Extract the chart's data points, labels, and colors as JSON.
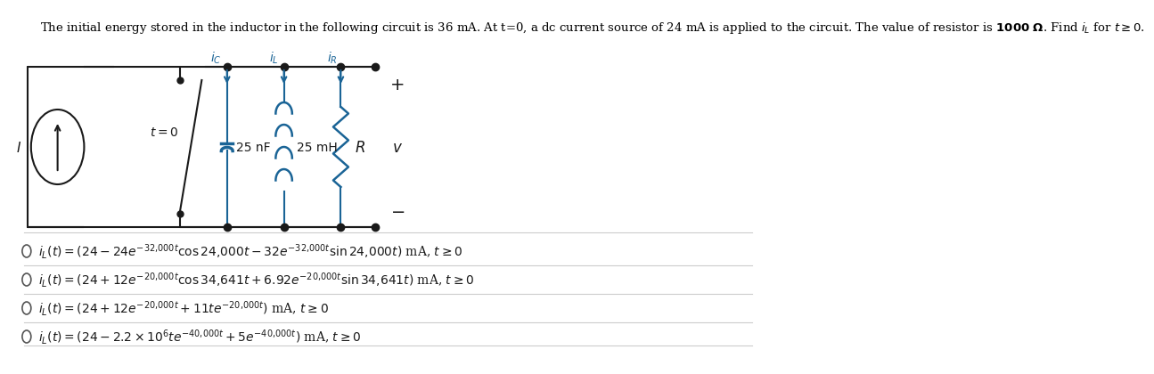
{
  "title": "The initial energy stored in the inductor in the following circuit is 36 mA. At t=0, a dc current source of 24 mA is applied to the circuit. The value of resistor is 1000 Ω. Find $i_L$ for $t \\geq 0$.",
  "options": [
    "$i_L(t) = (24 - 24e^{-32{,}000t}\\cos 24{,}000t - 32e^{-32{,}000t}\\sin 24{,}000t)$ mA, $t \\geq 0$",
    "$i_L(t) = (24 + 12e^{-20{,}000t}\\cos 34{,}641t + 6.92e^{-20{,}000t}\\sin 34{,}641t)$ mA, $t \\geq 0$",
    "$i_L(t) = (24 + 12e^{-20{,}000t} + 11te^{-20{,}000t})$ mA, $t \\geq 0$",
    "$i_L(t) = (24 - 2.2 \\times 10^6 te^{-40{,}000t} + 5e^{-40{,}000t})$ mA, $t \\geq 0$"
  ],
  "bg_color": "#ffffff",
  "text_color": "#000000",
  "option_color": "#555555",
  "circuit_color": "#000000",
  "wire_color": "#000000",
  "component_color": "#1a6496",
  "title_fontsize": 10,
  "option_fontsize": 11
}
